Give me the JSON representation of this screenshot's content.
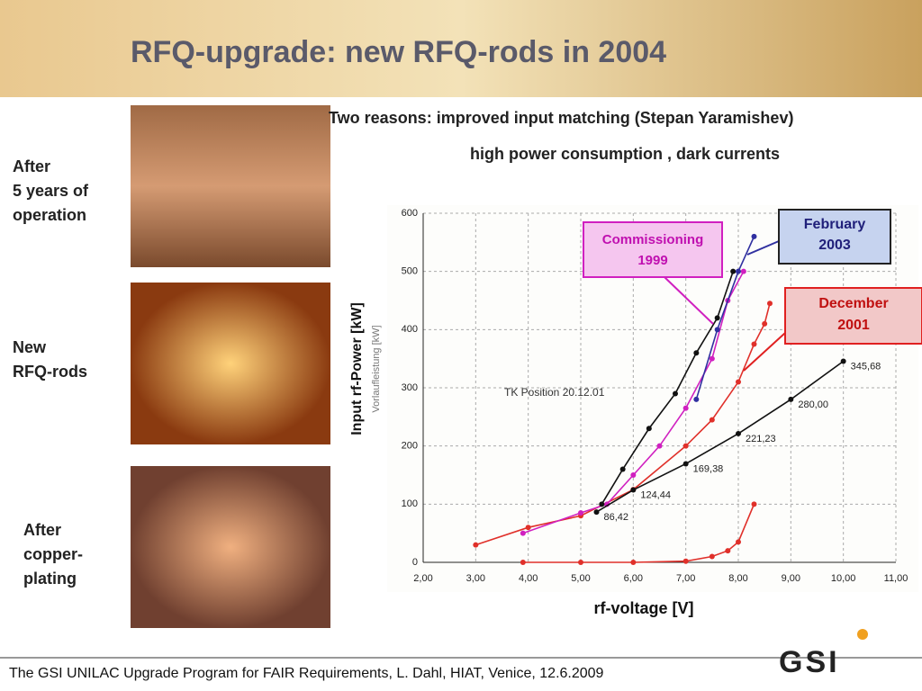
{
  "header": {
    "title": "RFQ-upgrade: new RFQ-rods in 2004"
  },
  "reasons": [
    "Two reasons:  improved input matching (Stepan Yaramishev)",
    "high power consumption , dark currents"
  ],
  "photo_captions": [
    [
      "After",
      "5 years of",
      "operation"
    ],
    [
      "New",
      "RFQ-rods"
    ],
    [
      "After",
      "copper-",
      "plating"
    ]
  ],
  "footer": {
    "text": "The GSI UNILAC Upgrade Program for FAIR Requirements, L. Dahl, HIAT, Venice, 12.6.2009",
    "logo": "GSI"
  },
  "chart_data": {
    "type": "line",
    "x_label": "rf-voltage [V]",
    "y_label": "Input rf-Power [kW]",
    "y_label_original": "Vorlaufleistung [kW]",
    "annotations": [
      "TK Position 20.12.01"
    ],
    "callouts": [
      [
        "Commissioning",
        "1999"
      ],
      [
        "February",
        "2003"
      ],
      [
        "December",
        "2001"
      ]
    ],
    "xlim": [
      2,
      11
    ],
    "ylim": [
      0,
      600
    ],
    "xticks": [
      {
        "value": 2,
        "label": "2,00"
      },
      {
        "value": 3,
        "label": "3,00"
      },
      {
        "value": 4,
        "label": "4,00"
      },
      {
        "value": 5,
        "label": "5,00"
      },
      {
        "value": 6,
        "label": "6,00"
      },
      {
        "value": 7,
        "label": "7,00"
      },
      {
        "value": 8,
        "label": "8,00"
      },
      {
        "value": 9,
        "label": "9,00"
      },
      {
        "value": 10,
        "label": "10,00"
      },
      {
        "value": 11,
        "label": "11,00"
      }
    ],
    "yticks": [
      0,
      100,
      200,
      300,
      400,
      500,
      600
    ],
    "grid": true,
    "series": [
      {
        "color": "#e0302a",
        "x": [
          3.0,
          4.0,
          5.0,
          6.0,
          7.0,
          7.5,
          8.0,
          8.3,
          8.5,
          8.6
        ],
        "values": [
          30,
          60,
          80,
          125,
          200,
          245,
          310,
          375,
          410,
          445
        ]
      },
      {
        "color": "#d020c0",
        "x": [
          3.9,
          5.0,
          5.5,
          6.0,
          6.5,
          7.0,
          7.5,
          7.8,
          8.1
        ],
        "values": [
          50,
          85,
          100,
          150,
          200,
          265,
          350,
          450,
          500
        ]
      },
      {
        "color": "#111111",
        "x": [
          5.4,
          5.8,
          6.3,
          6.8,
          7.2,
          7.6,
          7.9
        ],
        "values": [
          100,
          160,
          230,
          290,
          360,
          420,
          500
        ]
      },
      {
        "color": "#3030a0",
        "x": [
          7.2,
          7.6,
          8.0,
          8.3
        ],
        "values": [
          280,
          400,
          500,
          560
        ]
      },
      {
        "color": "#111111",
        "x": [
          5.3,
          6.0,
          7.0,
          8.0,
          9.0,
          10.0
        ],
        "values": [
          86.42,
          124.44,
          169.38,
          221.23,
          280,
          345.68
        ],
        "value_labels": [
          "86,42",
          "124,44",
          "169,38",
          "221,23",
          "280,00",
          "345,68"
        ]
      },
      {
        "color": "#e0302a",
        "x": [
          3.9,
          5.0,
          6.0,
          7.0,
          7.5,
          7.8,
          8.0,
          8.3
        ],
        "values": [
          0,
          0,
          0,
          2,
          10,
          20,
          35,
          100
        ]
      }
    ]
  }
}
